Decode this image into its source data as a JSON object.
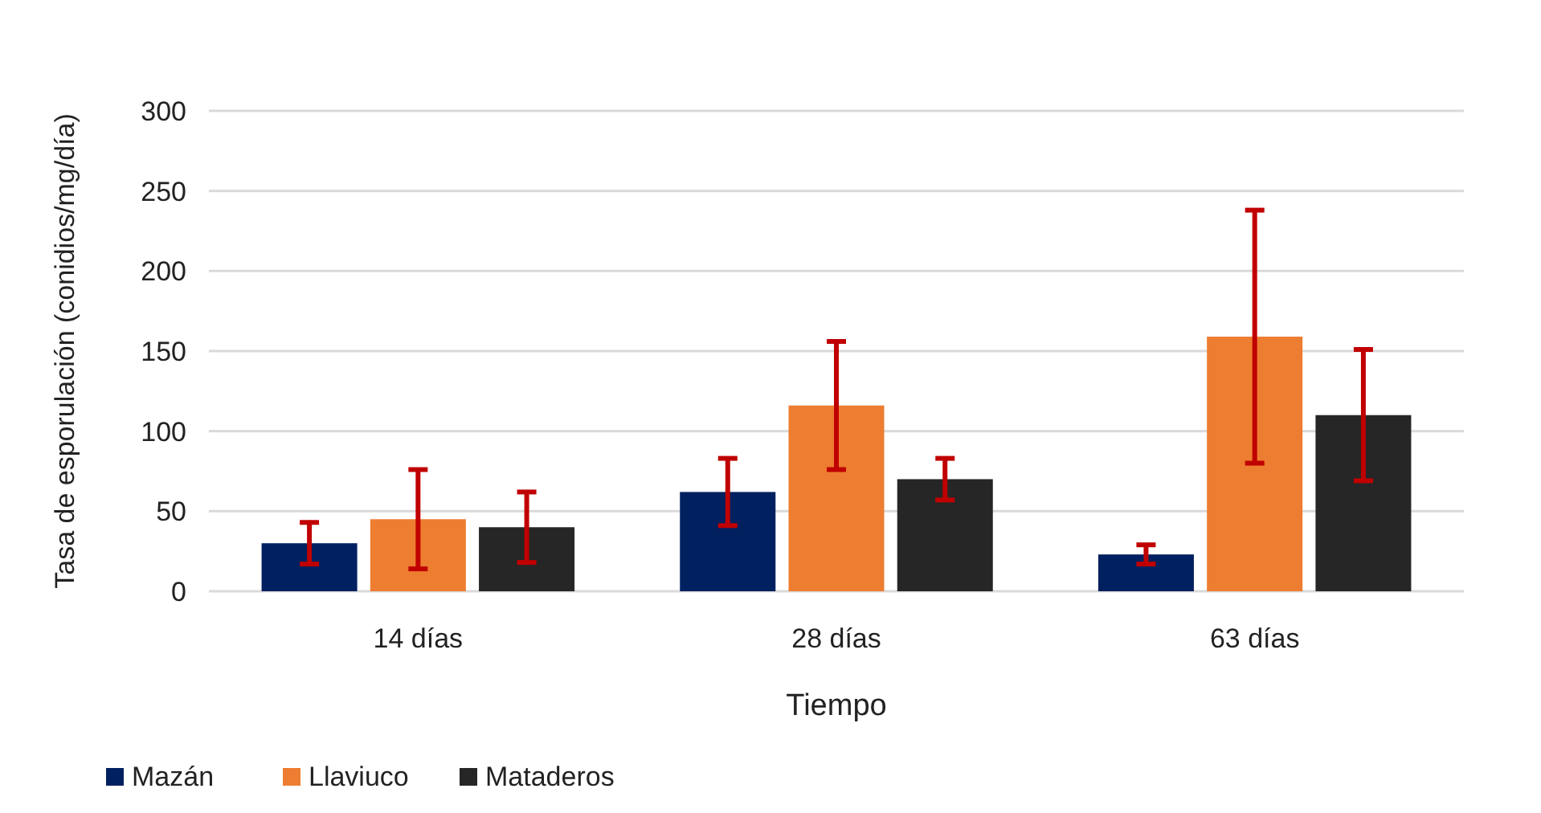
{
  "chart_data": {
    "type": "bar",
    "xlabel": "Tiempo",
    "ylabel": "Tasa de esporulación (conidios/mg/día)",
    "categories": [
      "14 días",
      "28 días",
      "63 días"
    ],
    "series": [
      {
        "name": "Mazán",
        "color": "#002060",
        "values": [
          30,
          62,
          23
        ],
        "errors": [
          13,
          21,
          6
        ]
      },
      {
        "name": "Llaviuco",
        "color": "#ed7d31",
        "values": [
          45,
          116,
          159
        ],
        "errors": [
          31,
          40,
          79
        ]
      },
      {
        "name": "Mataderos",
        "color": "#262626",
        "values": [
          40,
          70,
          110
        ],
        "errors": [
          22,
          13,
          41
        ]
      }
    ],
    "ylim": [
      0,
      300
    ],
    "yticks": [
      0,
      50,
      100,
      150,
      200,
      250,
      300
    ],
    "grid": "y",
    "legend": "bottom left"
  }
}
